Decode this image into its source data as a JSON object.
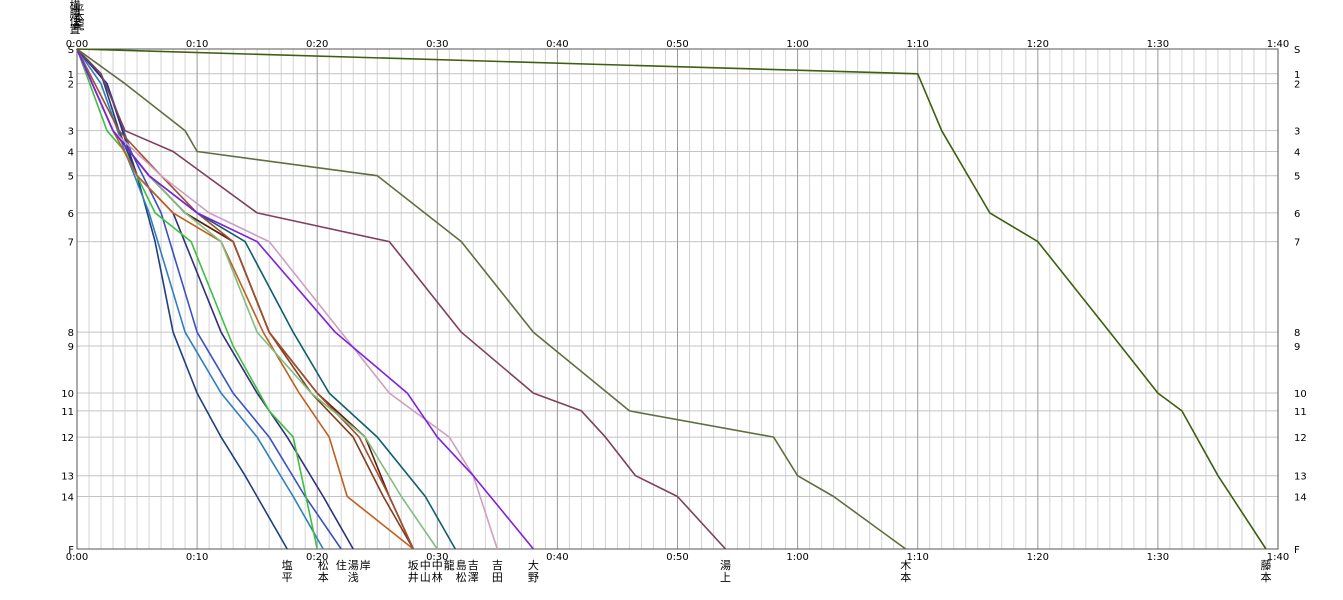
{
  "chart_data": {
    "type": "line",
    "title": "",
    "xlabel": "",
    "ylabel": "",
    "x_unit": "elapsed time (h:mm)",
    "xlim": [
      "0:00",
      "1:40"
    ],
    "x_ticks": [
      "0:00",
      "0:10",
      "0:20",
      "0:30",
      "0:40",
      "0:50",
      "1:00",
      "1:10",
      "1:20",
      "1:30",
      "1:40"
    ],
    "x_minor_step_min": 1,
    "y_ticks": [
      "S",
      "1",
      "2",
      "3",
      "4",
      "5",
      "6",
      "7",
      "8",
      "9",
      "10",
      "11",
      "12",
      "13",
      "14",
      "F"
    ],
    "y_positions": [
      0,
      5,
      7,
      16.5,
      20.7,
      25.6,
      33.1,
      38.9,
      57.2,
      60,
      69.5,
      73.1,
      78.4,
      86.2,
      90.4,
      101
    ],
    "top_name_stack": [
      "横",
      "平",
      "藤",
      "本",
      "住",
      "龍",
      "置"
    ],
    "grid": true,
    "series": [
      {
        "name": "塩平",
        "color": "#1f3f7f",
        "finish": "0:17.5",
        "points": [
          [
            "0:00",
            "S"
          ],
          [
            "0:02",
            "1"
          ],
          [
            "0:03.5",
            "3"
          ],
          [
            "0:05",
            "5"
          ],
          [
            "0:06.5",
            "7"
          ],
          [
            "0:08",
            "8"
          ],
          [
            "0:10",
            "10"
          ],
          [
            "0:12",
            "12"
          ],
          [
            "0:14",
            "13"
          ],
          [
            "0:17.5",
            "F"
          ]
        ]
      },
      {
        "name": "松本",
        "color": "#2f7fbf",
        "finish": "0:20.5",
        "points": [
          [
            "0:00",
            "S"
          ],
          [
            "0:02",
            "2"
          ],
          [
            "0:04",
            "4"
          ],
          [
            "0:06",
            "6"
          ],
          [
            "0:09",
            "8"
          ],
          [
            "0:12",
            "10"
          ],
          [
            "0:15",
            "12"
          ],
          [
            "0:18",
            "14"
          ],
          [
            "0:20.5",
            "F"
          ]
        ]
      },
      {
        "name": "住",
        "color": "#3b4fc6",
        "finish": "0:22",
        "points": [
          [
            "0:00",
            "S"
          ],
          [
            "0:02.5",
            "2"
          ],
          [
            "0:04.5",
            "4"
          ],
          [
            "0:07",
            "6"
          ],
          [
            "0:10",
            "8"
          ],
          [
            "0:13",
            "10"
          ],
          [
            "0:16",
            "12"
          ],
          [
            "0:19",
            "14"
          ],
          [
            "0:22",
            "F"
          ]
        ]
      },
      {
        "name": "湯浅",
        "color": "#2f2f7f",
        "finish": "0:23",
        "points": [
          [
            "0:00",
            "S"
          ],
          [
            "0:02.5",
            "2"
          ],
          [
            "0:05",
            "5"
          ],
          [
            "0:08",
            "6"
          ],
          [
            "0:12",
            "8"
          ],
          [
            "0:15",
            "10"
          ],
          [
            "0:17.5",
            "12"
          ],
          [
            "0:20.5",
            "14"
          ],
          [
            "0:23",
            "F"
          ]
        ]
      },
      {
        "name": "岸",
        "color": "#3fbf3f",
        "finish": "0:20",
        "points": [
          [
            "0:00",
            "S"
          ],
          [
            "0:02.5",
            "3"
          ],
          [
            "0:04",
            "4"
          ],
          [
            "0:06.5",
            "6"
          ],
          [
            "0:09.5",
            "7"
          ],
          [
            "0:13",
            "9"
          ],
          [
            "0:16",
            "11"
          ],
          [
            "0:18",
            "12"
          ],
          [
            "0:20",
            "F"
          ]
        ]
      },
      {
        "name": "坂井",
        "color": "#7f3f1f",
        "finish": "0:28",
        "points": [
          [
            "0:00",
            "S"
          ],
          [
            "0:03",
            "3"
          ],
          [
            "0:06",
            "5"
          ],
          [
            "0:09",
            "6"
          ],
          [
            "0:13",
            "7"
          ],
          [
            "0:16",
            "8"
          ],
          [
            "0:19.5",
            "10"
          ],
          [
            "0:23",
            "12"
          ],
          [
            "0:25.5",
            "14"
          ],
          [
            "0:28",
            "F"
          ]
        ]
      },
      {
        "name": "中山",
        "color": "#5f1f0f",
        "finish": "0:28",
        "points": [
          [
            "0:00",
            "S"
          ],
          [
            "0:03",
            "3"
          ],
          [
            "0:06",
            "5"
          ],
          [
            "0:09",
            "6"
          ],
          [
            "0:13",
            "7"
          ],
          [
            "0:16",
            "8"
          ],
          [
            "0:20",
            "10"
          ],
          [
            "0:24",
            "12"
          ],
          [
            "0:26",
            "14"
          ],
          [
            "0:28",
            "F"
          ]
        ]
      },
      {
        "name": "中林",
        "color": "#bf5f1f",
        "finish": "0:28",
        "points": [
          [
            "0:00",
            "S"
          ],
          [
            "0:03",
            "3"
          ],
          [
            "0:05",
            "5"
          ],
          [
            "0:08",
            "6"
          ],
          [
            "0:12",
            "7"
          ],
          [
            "0:15.5",
            "8"
          ],
          [
            "0:18.5",
            "10"
          ],
          [
            "0:21",
            "12"
          ],
          [
            "0:22.5",
            "14"
          ],
          [
            "0:28",
            "F"
          ]
        ]
      },
      {
        "name": "龍",
        "color": "#9f4f2f",
        "finish": "0:28",
        "points": [
          [
            "0:00",
            "S"
          ],
          [
            "0:03.5",
            "3"
          ],
          [
            "0:07",
            "5"
          ],
          [
            "0:10",
            "6"
          ],
          [
            "0:13",
            "7"
          ],
          [
            "0:16",
            "8"
          ],
          [
            "0:20",
            "10"
          ],
          [
            "0:23.5",
            "12"
          ],
          [
            "0:26",
            "14"
          ],
          [
            "0:28",
            "F"
          ]
        ]
      },
      {
        "name": "島松",
        "color": "#7fbf7f",
        "finish": "0:30",
        "points": [
          [
            "0:00",
            "S"
          ],
          [
            "0:03",
            "3"
          ],
          [
            "0:06",
            "5"
          ],
          [
            "0:09",
            "6"
          ],
          [
            "0:12",
            "7"
          ],
          [
            "0:15",
            "8"
          ],
          [
            "0:19.5",
            "10"
          ],
          [
            "0:24",
            "12"
          ],
          [
            "0:27",
            "14"
          ],
          [
            "0:30",
            "F"
          ]
        ]
      },
      {
        "name": "吉澤",
        "color": "#0f5f6f",
        "finish": "0:31.5",
        "points": [
          [
            "0:00",
            "S"
          ],
          [
            "0:03",
            "3"
          ],
          [
            "0:06",
            "5"
          ],
          [
            "0:10",
            "6"
          ],
          [
            "0:14",
            "7"
          ],
          [
            "0:18",
            "8"
          ],
          [
            "0:21",
            "10"
          ],
          [
            "0:25",
            "12"
          ],
          [
            "0:29",
            "14"
          ],
          [
            "0:31.5",
            "F"
          ]
        ]
      },
      {
        "name": "吉田",
        "color": "#cf9fbf",
        "finish": "0:35",
        "points": [
          [
            "0:00",
            "S"
          ],
          [
            "0:03",
            "3"
          ],
          [
            "0:07",
            "5"
          ],
          [
            "0:11",
            "6"
          ],
          [
            "0:16",
            "7"
          ],
          [
            "0:22",
            "8"
          ],
          [
            "0:26",
            "10"
          ],
          [
            "0:31",
            "12"
          ],
          [
            "0:33",
            "13"
          ],
          [
            "0:35",
            "F"
          ]
        ]
      },
      {
        "name": "大野",
        "color": "#7f1fdf",
        "finish": "0:38",
        "points": [
          [
            "0:00",
            "S"
          ],
          [
            "0:03",
            "3"
          ],
          [
            "0:06",
            "5"
          ],
          [
            "0:10",
            "6"
          ],
          [
            "0:15",
            "7"
          ],
          [
            "0:21.5",
            "8"
          ],
          [
            "0:27.5",
            "10"
          ],
          [
            "0:30",
            "12"
          ],
          [
            "0:33",
            "13"
          ],
          [
            "0:38",
            "F"
          ]
        ]
      },
      {
        "name": "湯上",
        "color": "#7f3f5f",
        "finish": "0:54",
        "points": [
          [
            "0:00",
            "S"
          ],
          [
            "0:02",
            "1"
          ],
          [
            "0:04",
            "3"
          ],
          [
            "0:08",
            "4"
          ],
          [
            "0:15",
            "6"
          ],
          [
            "0:26",
            "7"
          ],
          [
            "0:32",
            "8"
          ],
          [
            "0:38",
            "10"
          ],
          [
            "0:42",
            "11"
          ],
          [
            "0:44",
            "12"
          ],
          [
            "0:46.5",
            "13"
          ],
          [
            "0:50",
            "14"
          ],
          [
            "0:54",
            "F"
          ]
        ]
      },
      {
        "name": "木本",
        "color": "#5f6f3f",
        "finish": "1:09",
        "points": [
          [
            "0:00",
            "S"
          ],
          [
            "0:04",
            "2"
          ],
          [
            "0:09",
            "3"
          ],
          [
            "0:10",
            "4"
          ],
          [
            "0:25",
            "5"
          ],
          [
            "0:32",
            "7"
          ],
          [
            "0:38",
            "8"
          ],
          [
            "0:46",
            "11"
          ],
          [
            "0:58",
            "12"
          ],
          [
            "1:00",
            "13"
          ],
          [
            "1:03",
            "14"
          ],
          [
            "1:09",
            "F"
          ]
        ]
      },
      {
        "name": "藤本",
        "color": "#3f5f0f",
        "finish": "1:39",
        "points": [
          [
            "0:00",
            "S"
          ],
          [
            "1:10",
            "1"
          ],
          [
            "1:12",
            "3"
          ],
          [
            "1:16",
            "6"
          ],
          [
            "1:20",
            "7"
          ],
          [
            "1:26",
            "8"
          ],
          [
            "1:30",
            "10"
          ],
          [
            "1:32",
            "11"
          ],
          [
            "1:35",
            "13"
          ],
          [
            "1:39",
            "F"
          ]
        ]
      }
    ]
  }
}
